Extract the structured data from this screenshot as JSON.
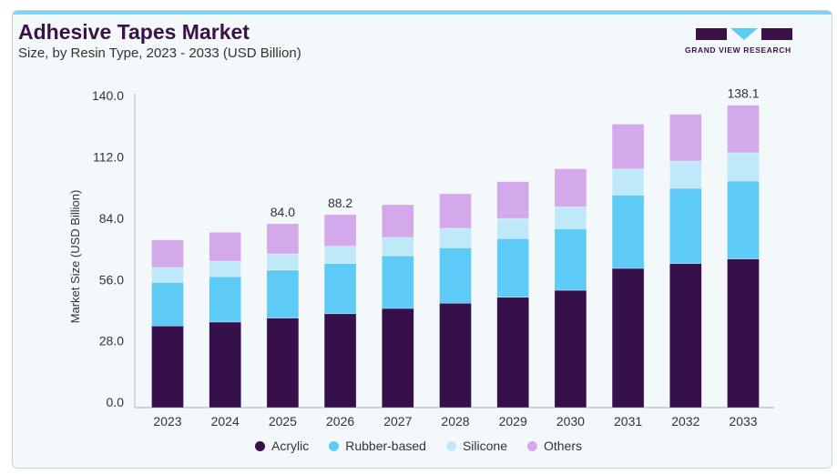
{
  "header": {
    "title": "Adhesive Tapes Market",
    "subtitle": "Size, by Resin Type, 2023 - 2033 (USD Billion)",
    "logo_text": "GRAND VIEW RESEARCH"
  },
  "colors": {
    "Acrylic": "#36104a",
    "Rubber-based": "#5ecaf6",
    "Silicone": "#bfe9f9",
    "Others": "#d4a9eb"
  },
  "chart_data": {
    "type": "bar",
    "stacked": true,
    "title": "Adhesive Tapes Market",
    "xlabel": "",
    "ylabel": "Market Size (USD Billion)",
    "ylim": [
      0,
      140
    ],
    "yticks": [
      "0.0",
      "28.0",
      "56.0",
      "84.0",
      "112.0",
      "140.0"
    ],
    "categories": [
      "2023",
      "2024",
      "2025",
      "2026",
      "2027",
      "2028",
      "2029",
      "2030",
      "2031",
      "2032",
      "2033"
    ],
    "series": [
      {
        "name": "Acrylic",
        "values": [
          37.3,
          39.1,
          40.9,
          42.9,
          45.3,
          47.7,
          50.4,
          53.6,
          63.6,
          65.8,
          67.9
        ]
      },
      {
        "name": "Rubber-based",
        "values": [
          19.9,
          20.7,
          21.9,
          22.9,
          24.1,
          25.3,
          26.8,
          28.1,
          33.5,
          34.4,
          35.6
        ]
      },
      {
        "name": "Silicone",
        "values": [
          6.8,
          7.1,
          7.4,
          7.9,
          8.3,
          8.9,
          9.2,
          10.0,
          11.9,
          12.4,
          12.9
        ]
      },
      {
        "name": "Others",
        "values": [
          12.6,
          13.2,
          13.8,
          14.5,
          15.0,
          15.8,
          16.8,
          17.4,
          20.5,
          21.4,
          21.7
        ]
      }
    ],
    "data_labels": {
      "2025": "84.0",
      "2026": "88.2",
      "2033": "138.1"
    },
    "legend": "bottom"
  }
}
